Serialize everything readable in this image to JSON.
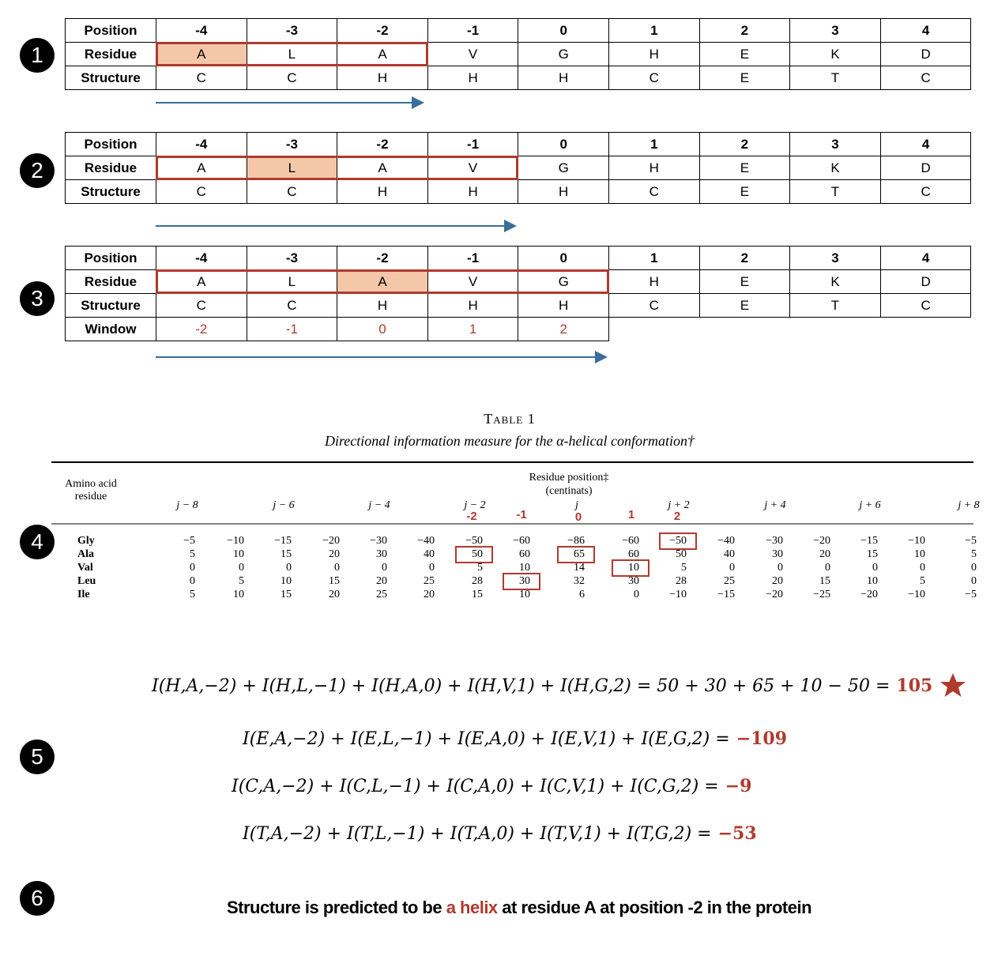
{
  "steps": [
    "1",
    "2",
    "3",
    "4",
    "5",
    "6"
  ],
  "grids": [
    {
      "row_labels": [
        "Position",
        "Residue",
        "Structure"
      ],
      "positions": [
        "-4",
        "-3",
        "-2",
        "-1",
        "0",
        "1",
        "2",
        "3",
        "4"
      ],
      "residues": [
        "A",
        "L",
        "A",
        "V",
        "G",
        "H",
        "E",
        "K",
        "D"
      ],
      "structure": [
        "C",
        "C",
        "H",
        "H",
        "H",
        "C",
        "E",
        "T",
        "C"
      ]
    },
    {
      "row_labels": [
        "Position",
        "Residue",
        "Structure"
      ],
      "positions": [
        "-4",
        "-3",
        "-2",
        "-1",
        "0",
        "1",
        "2",
        "3",
        "4"
      ],
      "residues": [
        "A",
        "L",
        "A",
        "V",
        "G",
        "H",
        "E",
        "K",
        "D"
      ],
      "structure": [
        "C",
        "C",
        "H",
        "H",
        "H",
        "C",
        "E",
        "T",
        "C"
      ]
    },
    {
      "row_labels": [
        "Position",
        "Residue",
        "Structure",
        "Window"
      ],
      "positions": [
        "-4",
        "-3",
        "-2",
        "-1",
        "0",
        "1",
        "2",
        "3",
        "4"
      ],
      "residues": [
        "A",
        "L",
        "A",
        "V",
        "G",
        "H",
        "E",
        "K",
        "D"
      ],
      "structure": [
        "C",
        "C",
        "H",
        "H",
        "H",
        "C",
        "E",
        "T",
        "C"
      ],
      "window": [
        "-2",
        "-1",
        "0",
        "1",
        "2"
      ]
    }
  ],
  "table": {
    "caption": "Table 1",
    "subtitle": "Directional information measure for the α-helical conformation†",
    "row_header": "Amino acid residue",
    "group_header": "Residue position‡",
    "unit": "(centinats)",
    "column_headers": [
      "j − 8",
      "j − 6",
      "j − 4",
      "j − 2",
      "j",
      "j + 2",
      "j + 4",
      "j + 6",
      "j + 8"
    ],
    "window_labels": [
      "-2",
      "-1",
      "0",
      "1",
      "2"
    ],
    "rows": [
      {
        "name": "Gly",
        "values": [
          "−5",
          "−10",
          "−15",
          "−20",
          "−30",
          "−40",
          "−50",
          "−60",
          "−86",
          "−60",
          "−50",
          "−40",
          "−30",
          "−20",
          "−15",
          "−10",
          "−5"
        ]
      },
      {
        "name": "Ala",
        "values": [
          "5",
          "10",
          "15",
          "20",
          "30",
          "40",
          "50",
          "60",
          "65",
          "60",
          "50",
          "40",
          "30",
          "20",
          "15",
          "10",
          "5"
        ]
      },
      {
        "name": "Val",
        "values": [
          "0",
          "0",
          "0",
          "0",
          "0",
          "0",
          "5",
          "10",
          "14",
          "10",
          "5",
          "0",
          "0",
          "0",
          "0",
          "0",
          "0"
        ]
      },
      {
        "name": "Leu",
        "values": [
          "0",
          "5",
          "10",
          "15",
          "20",
          "25",
          "28",
          "30",
          "32",
          "30",
          "28",
          "25",
          "20",
          "15",
          "10",
          "5",
          "0"
        ]
      },
      {
        "name": "Ile",
        "values": [
          "5",
          "10",
          "15",
          "20",
          "25",
          "20",
          "15",
          "10",
          "6",
          "0",
          "−10",
          "−15",
          "−20",
          "−25",
          "−20",
          "−10",
          "−5"
        ]
      }
    ]
  },
  "equations": [
    {
      "lhs": "I(H,A,−2) + I(H,L,−1) + I(H,A,0) + I(H,V,1) + I(H,G,2) = 50 + 30 + 65 + 10 − 50 =",
      "result": "105"
    },
    {
      "lhs": "I(E,A,−2) + I(E,L,−1) + I(E,A,0) + I(E,V,1) + I(E,G,2) =",
      "result": "−109"
    },
    {
      "lhs": "I(C,A,−2) + I(C,L,−1) + I(C,A,0) + I(C,V,1) + I(C,G,2) =",
      "result": "−9"
    },
    {
      "lhs": "I(T,A,−2) + I(T,L,−1) + I(T,A,0) + I(T,V,1) + I(T,G,2) =",
      "result": "−53"
    }
  ],
  "conclusion": {
    "before": "Structure is predicted to be",
    "highlight": "a helix",
    "after": "at residue A at position -2 in the protein"
  }
}
